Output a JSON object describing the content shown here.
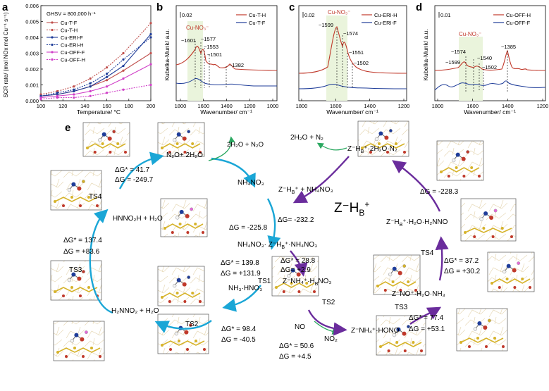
{
  "panels": {
    "a": {
      "letter": "a",
      "ylabel": "SCR rate/ (mol NOx mol Cu⁻¹ s⁻¹)",
      "xlabel": "Temperature/ °C",
      "annotation": "GHSV = 800,000 h⁻¹",
      "yticks": [
        "0.000",
        "0.001",
        "0.002",
        "0.003",
        "0.004",
        "0.005",
        "0.006"
      ],
      "xticks": [
        "100",
        "120",
        "140",
        "160",
        "180",
        "200"
      ],
      "legend": [
        "Cu-T-F",
        "Cu-T-H",
        "Cu-ERI-F",
        "Cu-ERI-H",
        "Cu-OFF-F",
        "Cu-OFF-H"
      ]
    },
    "b": {
      "letter": "b",
      "scale": "0.02",
      "tag": "Cu-NO₃⁻",
      "ylabel": "Kubelka-Munk/ a.u.",
      "xlabel": "Wavenumber/ cm⁻¹",
      "xticks": [
        "1800",
        "1600",
        "1400",
        "1200",
        "1000"
      ],
      "legend": [
        "Cu-T-H",
        "Cu-T-F"
      ],
      "peaks": [
        "~1601",
        "~1577",
        "~1553",
        "~1501",
        "~1382"
      ]
    },
    "c": {
      "letter": "c",
      "scale": "0.02",
      "tag": "Cu-NO₃⁻",
      "xlabel": "Wavenumber/ cm⁻¹",
      "xticks": [
        "1800",
        "1600",
        "1400",
        "1200"
      ],
      "legend": [
        "Cu-ERI-H",
        "Cu-ERI-F"
      ],
      "peaks": [
        "~1599",
        "~1574",
        "~1551",
        "~1502"
      ]
    },
    "d": {
      "letter": "d",
      "scale": "0.01",
      "tag": "Cu-NO₃⁻",
      "ylabel": "Kubelka-Munk/ a.u.",
      "xlabel": "Wavenumber/ cm⁻¹",
      "xticks": [
        "1800",
        "1600",
        "1400",
        "1200"
      ],
      "legend": [
        "Cu-OFF-H",
        "Cu-OFF-F"
      ],
      "peaks": [
        "~1574",
        "~1599",
        "~1540",
        "~1502",
        "~1385"
      ]
    }
  },
  "chart_data": {
    "type": "line",
    "x": [
      100,
      115,
      130,
      145,
      160,
      175,
      200
    ],
    "xlim": [
      100,
      200
    ],
    "ylim": [
      0,
      0.006
    ],
    "xlabel": "Temperature/ °C",
    "ylabel": "SCR rate/ (mol NOx mol Cu⁻¹ s⁻¹)",
    "legend_position": "top-left",
    "series": [
      {
        "name": "Cu-T-F",
        "values": [
          0.0003,
          0.0004,
          0.0006,
          0.0009,
          0.0013,
          0.0019,
          0.003
        ],
        "color": "#c0504d",
        "dash": false
      },
      {
        "name": "Cu-T-H",
        "values": [
          0.0004,
          0.0006,
          0.0009,
          0.0014,
          0.0021,
          0.003,
          0.0049
        ],
        "color": "#c0504d",
        "dash": true
      },
      {
        "name": "Cu-ERI-F",
        "values": [
          0.0003,
          0.0004,
          0.0006,
          0.0009,
          0.0015,
          0.0022,
          0.0042
        ],
        "color": "#1f3d99",
        "dash": false
      },
      {
        "name": "Cu-ERI-H",
        "values": [
          0.0003,
          0.0005,
          0.0007,
          0.0011,
          0.0017,
          0.0026,
          0.004
        ],
        "color": "#1f3d99",
        "dash": true
      },
      {
        "name": "Cu-OFF-F",
        "values": [
          0.0002,
          0.0003,
          0.0004,
          0.0006,
          0.0009,
          0.0014,
          0.0023
        ],
        "color": "#d040c8",
        "dash": false
      },
      {
        "name": "Cu-OFF-H",
        "values": [
          0.0001,
          0.0002,
          0.0002,
          0.0003,
          0.0005,
          0.0007,
          0.001
        ],
        "color": "#d040c8",
        "dash": true
      }
    ]
  },
  "cycle": {
    "letter": "e",
    "center": "Z⁻H",
    "center_sub": "B",
    "center_sup": "+",
    "nodes": {
      "n2o_h2o": "N₂O+ 2H₂O",
      "h2o_n2o_out": "2H₂O + N₂O",
      "nh4no3": "NH₄NO₃",
      "z_nh4no3": "NH₄NO₃· Z⁻H",
      "z_nh4no3_sub": "B",
      "z_nh4no3_tail": "⁺·NH₄NO₃",
      "nh3hno3": "NH₃·HNO₃",
      "h2nno2": "H₂NNO₂ + H₂O",
      "hnno2h": "HNNO₂H + H₂O",
      "zh_nh4no3_add": "Z⁻H",
      "zh_nh4no3_add_tail": "⁺ + NH₄NO₃",
      "h2o_n2_out": "2H₂O + N₂",
      "z_2h2o_n2": "Z⁻H",
      "z_2h2o_n2_tail": "⁺·2H₂O·N₂",
      "z_h2o_h2nno": "Z⁻H",
      "z_h2o_h2nno_tail": "⁺·H₂O·H₂NNO",
      "z_no_h2o_nh3": "Z⁻NO⁺·H₂O·NH₃",
      "z_nh4_hono": "Z⁻NH₄⁺·HONO",
      "z_nh4_hno3": "Z⁻NH₄⁺·H",
      "z_nh4_hno3_tail": "NO₃",
      "no": "NO",
      "no2": "NO₂",
      "hb_sub": "B"
    },
    "energies": {
      "ts4_left_a": "ΔG* = 41.7",
      "ts4_left_b": "ΔG = -249.7",
      "dg_n225": "ΔG = -225.8",
      "dg_n232": "ΔG= -232.2",
      "ts3_left_a": "ΔG* = 137.4",
      "ts3_left_b": "ΔG = +83.6",
      "ts1_a": "ΔG* = 139.8",
      "ts1_b": "ΔG = +131.9",
      "hb_a": "ΔG* = 28.8",
      "hb_b": "ΔG= +2.9",
      "ts2_left_a": "ΔG* = 98.4",
      "ts2_left_b": "ΔG = -40.5",
      "ts2_right_a": "ΔG* = 50.6",
      "ts2_right_b": "ΔG = +4.5",
      "dg_n228": "ΔG = -228.3",
      "ts4_right_a": "ΔG* = 37.2",
      "ts4_right_b": "ΔG = +30.2",
      "ts3_right_a": "ΔG* = 77.4",
      "ts3_right_b": "ΔG = +53.1"
    },
    "ts": {
      "ts1": "TS1",
      "ts2_left": "TS2",
      "ts2_right": "TS2",
      "ts3_left": "TS3",
      "ts3_right": "TS3",
      "ts4_left": "TS4",
      "ts4_right": "TS4"
    },
    "colors": {
      "cyan": "#1aa6d6",
      "purple": "#6a2c9c",
      "green": "#2aa860",
      "red": "#c0392b",
      "blue": "#1f3d99"
    }
  }
}
